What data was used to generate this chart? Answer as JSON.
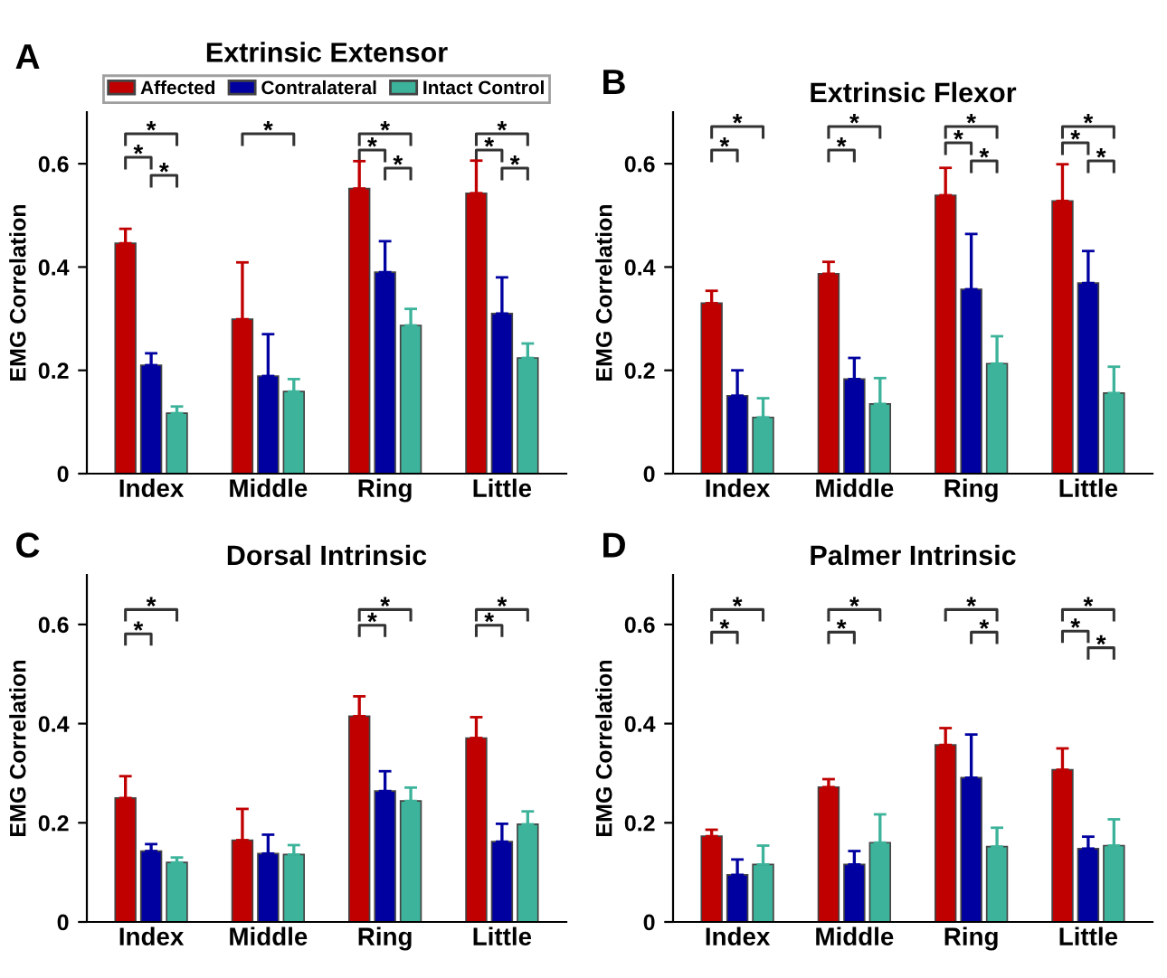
{
  "chart_data": [
    {
      "type": "bar",
      "title": "Extrinsic Extensor",
      "ylabel": "EMG Correlation",
      "categories": [
        "Index",
        "Middle",
        "Ring",
        "Little"
      ],
      "ylim": [
        0,
        0.7
      ],
      "yticks": [
        0,
        0.2,
        0.4,
        0.6
      ],
      "grid": false,
      "legend": "top",
      "series": [
        {
          "name": "Affected",
          "color": "#c00000",
          "values": [
            0.446,
            0.299,
            0.552,
            0.543
          ],
          "errors": [
            [
              0.446,
              0.474
            ],
            [
              0.299,
              0.409
            ],
            [
              0.552,
              0.605
            ],
            [
              0.543,
              0.606
            ]
          ]
        },
        {
          "name": "Contralateral",
          "color": "#0000a0",
          "values": [
            0.21,
            0.189,
            0.39,
            0.31
          ],
          "errors": [
            [
              0.21,
              0.233
            ],
            [
              0.189,
              0.27
            ],
            [
              0.39,
              0.45
            ],
            [
              0.31,
              0.38
            ]
          ]
        },
        {
          "name": "Intact Control",
          "color": "#3cb39a",
          "values": [
            0.117,
            0.159,
            0.287,
            0.224
          ],
          "errors": [
            [
              0.117,
              0.13
            ],
            [
              0.159,
              0.183
            ],
            [
              0.287,
              0.319
            ],
            [
              0.224,
              0.252
            ]
          ]
        }
      ],
      "annotations": [
        "A",
        "*",
        "*",
        "*",
        "*",
        "*",
        "*",
        "*",
        "*",
        "*",
        "*"
      ]
    },
    {
      "type": "bar",
      "title": "Extrinsic Flexor",
      "ylabel": "EMG Correlation",
      "categories": [
        "Index",
        "Middle",
        "Ring",
        "Little"
      ],
      "ylim": [
        0,
        0.7
      ],
      "yticks": [
        0,
        0.2,
        0.4,
        0.6
      ],
      "grid": false,
      "series": [
        {
          "color": "#c00000",
          "values": [
            0.33,
            0.387,
            0.539,
            0.528
          ],
          "errors": [
            [
              0.33,
              0.354
            ],
            [
              0.387,
              0.41
            ],
            [
              0.539,
              0.592
            ],
            [
              0.528,
              0.599
            ]
          ]
        },
        {
          "color": "#0000a0",
          "values": [
            0.151,
            0.183,
            0.357,
            0.369
          ],
          "errors": [
            [
              0.151,
              0.2
            ],
            [
              0.183,
              0.224
            ],
            [
              0.357,
              0.464
            ],
            [
              0.369,
              0.431
            ]
          ]
        },
        {
          "color": "#3cb39a",
          "values": [
            0.109,
            0.135,
            0.213,
            0.156
          ],
          "errors": [
            [
              0.109,
              0.146
            ],
            [
              0.135,
              0.185
            ],
            [
              0.213,
              0.266
            ],
            [
              0.156,
              0.207
            ]
          ]
        }
      ],
      "annotations": [
        "B",
        "*",
        "*",
        "*",
        "*",
        "*",
        "*",
        "*",
        "*",
        "*",
        "*"
      ]
    },
    {
      "type": "bar",
      "title": "Dorsal Intrinsic",
      "ylabel": "EMG Correlation",
      "categories": [
        "Index",
        "Middle",
        "Ring",
        "Little"
      ],
      "ylim": [
        0,
        0.7
      ],
      "yticks": [
        0,
        0.2,
        0.4,
        0.6
      ],
      "grid": false,
      "series": [
        {
          "color": "#c00000",
          "values": [
            0.25,
            0.165,
            0.415,
            0.371
          ],
          "errors": [
            [
              0.25,
              0.294
            ],
            [
              0.165,
              0.228
            ],
            [
              0.415,
              0.455
            ],
            [
              0.371,
              0.413
            ]
          ]
        },
        {
          "color": "#0000a0",
          "values": [
            0.143,
            0.138,
            0.264,
            0.162
          ],
          "errors": [
            [
              0.143,
              0.157
            ],
            [
              0.138,
              0.176
            ],
            [
              0.264,
              0.304
            ],
            [
              0.162,
              0.198
            ]
          ]
        },
        {
          "color": "#3cb39a",
          "values": [
            0.12,
            0.136,
            0.244,
            0.197
          ],
          "errors": [
            [
              0.12,
              0.13
            ],
            [
              0.136,
              0.155
            ],
            [
              0.244,
              0.271
            ],
            [
              0.197,
              0.223
            ]
          ]
        }
      ],
      "annotations": [
        "C",
        "*",
        "*",
        "*",
        "*",
        "*",
        "*"
      ]
    },
    {
      "type": "bar",
      "title": "Palmer Intrinsic",
      "ylabel": "EMG Correlation",
      "categories": [
        "Index",
        "Middle",
        "Ring",
        "Little"
      ],
      "ylim": [
        0,
        0.7
      ],
      "yticks": [
        0,
        0.2,
        0.4,
        0.6
      ],
      "grid": false,
      "series": [
        {
          "color": "#c00000",
          "values": [
            0.173,
            0.272,
            0.357,
            0.307
          ],
          "errors": [
            [
              0.173,
              0.186
            ],
            [
              0.272,
              0.288
            ],
            [
              0.357,
              0.391
            ],
            [
              0.307,
              0.35
            ]
          ]
        },
        {
          "color": "#0000a0",
          "values": [
            0.095,
            0.116,
            0.291,
            0.148
          ],
          "errors": [
            [
              0.095,
              0.126
            ],
            [
              0.116,
              0.143
            ],
            [
              0.291,
              0.378
            ],
            [
              0.148,
              0.172
            ]
          ]
        },
        {
          "color": "#3cb39a",
          "values": [
            0.116,
            0.16,
            0.152,
            0.154
          ],
          "errors": [
            [
              0.116,
              0.154
            ],
            [
              0.16,
              0.217
            ],
            [
              0.152,
              0.19
            ],
            [
              0.154,
              0.207
            ]
          ]
        }
      ],
      "annotations": [
        "D",
        "*",
        "*",
        "*",
        "*",
        "*",
        "*",
        "*",
        "*",
        "*"
      ]
    }
  ]
}
